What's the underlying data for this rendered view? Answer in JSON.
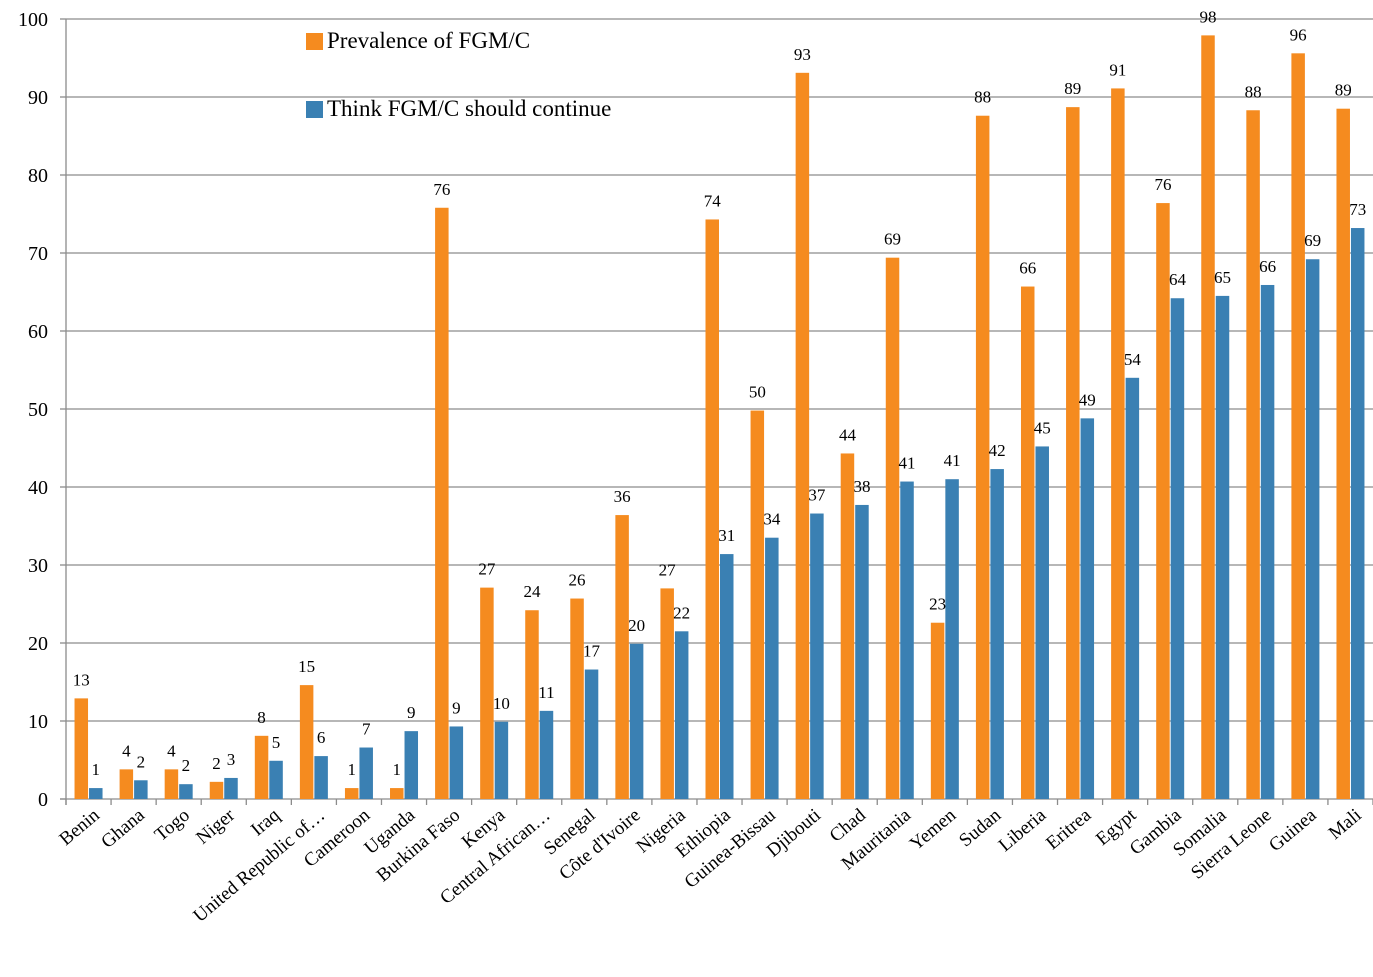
{
  "chart_data": {
    "type": "bar",
    "title": "",
    "xlabel": "",
    "ylabel": "",
    "ylim": [
      0,
      100
    ],
    "yticks": [
      0,
      10,
      20,
      30,
      40,
      50,
      60,
      70,
      80,
      90,
      100
    ],
    "grid": true,
    "legend_position": "top-left",
    "categories": [
      "Benin",
      "Ghana",
      "Togo",
      "Niger",
      "Iraq",
      "United Republic of…",
      "Cameroon",
      "Uganda",
      "Burkina Faso",
      "Kenya",
      "Central African…",
      "Senegal",
      "Côte d'Ivoire",
      "Nigeria",
      "Ethiopia",
      "Guinea-Bissau",
      "Djibouti",
      "Chad",
      "Mauritania",
      "Yemen",
      "Sudan",
      "Liberia",
      "Eritrea",
      "Egypt",
      "Gambia",
      "Somalia",
      "Sierra Leone",
      "Guinea",
      "Mali"
    ],
    "series": [
      {
        "name": "Prevalence of FGM/C",
        "color": "#f58b1f",
        "values": [
          12.9,
          3.8,
          3.8,
          2.2,
          8.1,
          14.6,
          1.4,
          1.4,
          75.8,
          27.1,
          24.2,
          25.7,
          36.4,
          27.0,
          74.3,
          49.8,
          93.1,
          44.3,
          69.4,
          22.6,
          87.6,
          65.7,
          88.7,
          91.1,
          76.4,
          97.9,
          88.3,
          95.6,
          88.5
        ],
        "labels": [
          "13",
          "4",
          "4",
          "2",
          "8",
          "15",
          "1",
          "1",
          "76",
          "27",
          "24",
          "26",
          "36",
          "27",
          "74",
          "50",
          "93",
          "44",
          "69",
          "23",
          "88",
          "66",
          "89",
          "91",
          "76",
          "98",
          "88",
          "96",
          "89"
        ]
      },
      {
        "name": "Think FGM/C should continue",
        "color": "#3a80b3",
        "values": [
          1.4,
          2.4,
          1.9,
          2.7,
          4.9,
          5.5,
          6.6,
          8.7,
          9.3,
          9.9,
          11.3,
          16.6,
          19.9,
          21.5,
          31.4,
          33.5,
          36.6,
          37.7,
          40.7,
          41.0,
          42.3,
          45.2,
          48.8,
          54.0,
          64.2,
          64.5,
          65.9,
          69.2,
          73.2
        ],
        "labels": [
          "1",
          "2",
          "2",
          "3",
          "5",
          "6",
          "7",
          "9",
          "9",
          "10",
          "11",
          "17",
          "20",
          "22",
          "31",
          "34",
          "37",
          "38",
          "41",
          "41",
          "42",
          "45",
          "49",
          "54",
          "64",
          "65",
          "66",
          "69",
          "73"
        ]
      }
    ]
  }
}
